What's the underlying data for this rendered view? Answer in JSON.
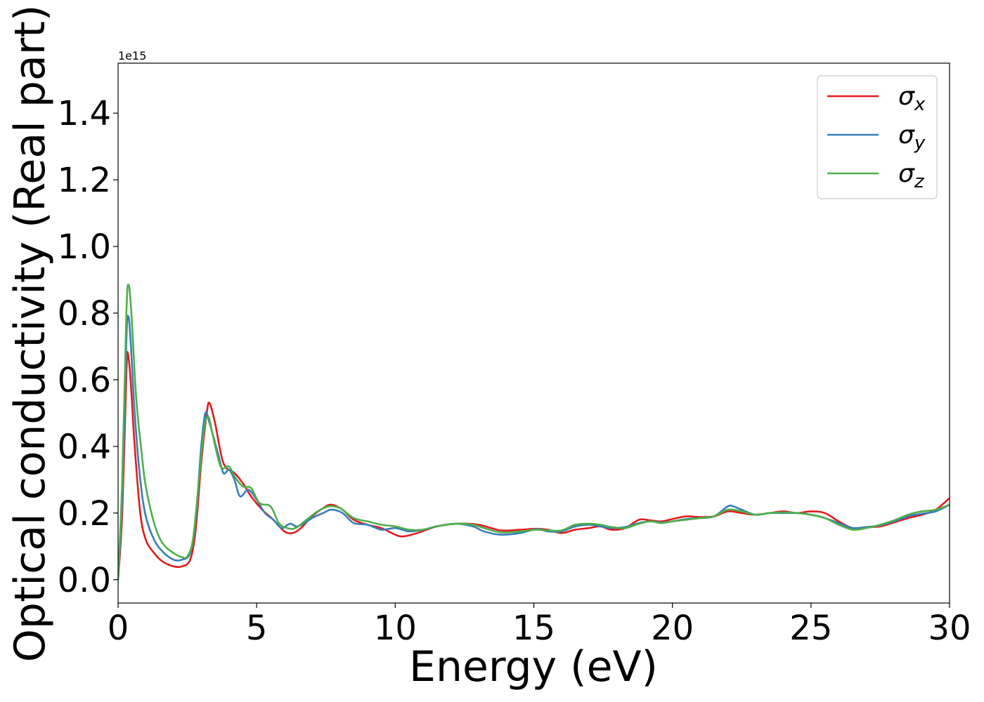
{
  "chart_data": {
    "type": "line",
    "title": "",
    "xlabel": "Energy (eV)",
    "ylabel": "Optical conductivity (Real part)",
    "y_offset_label": "1e15",
    "xlim": [
      0,
      30
    ],
    "ylim": [
      -0.07,
      1.55
    ],
    "x_ticks": [
      0,
      5,
      10,
      15,
      20,
      25,
      30
    ],
    "x_tick_labels": [
      "0",
      "5",
      "10",
      "15",
      "20",
      "25",
      "30"
    ],
    "y_ticks": [
      0.0,
      0.2,
      0.4,
      0.6,
      0.8,
      1.0,
      1.2,
      1.4
    ],
    "y_tick_labels": [
      "0.0",
      "0.2",
      "0.4",
      "0.6",
      "0.8",
      "1.0",
      "1.2",
      "1.4"
    ],
    "grid": false,
    "legend_position": "top-right",
    "series": [
      {
        "name": "σx",
        "legend_symbol": "σ",
        "legend_subscript": "x",
        "color": "#e41a1c",
        "points": [
          [
            0,
            0.0
          ],
          [
            0.15,
            0.2
          ],
          [
            0.3,
            0.62
          ],
          [
            0.35,
            0.68
          ],
          [
            0.45,
            0.6
          ],
          [
            0.6,
            0.4
          ],
          [
            0.8,
            0.2
          ],
          [
            1.0,
            0.12
          ],
          [
            1.3,
            0.08
          ],
          [
            1.6,
            0.055
          ],
          [
            2.0,
            0.04
          ],
          [
            2.3,
            0.04
          ],
          [
            2.6,
            0.06
          ],
          [
            2.8,
            0.15
          ],
          [
            3.0,
            0.35
          ],
          [
            3.2,
            0.5
          ],
          [
            3.3,
            0.53
          ],
          [
            3.5,
            0.47
          ],
          [
            3.8,
            0.35
          ],
          [
            4.2,
            0.32
          ],
          [
            4.5,
            0.29
          ],
          [
            4.8,
            0.25
          ],
          [
            5.2,
            0.21
          ],
          [
            5.6,
            0.18
          ],
          [
            6.0,
            0.145
          ],
          [
            6.3,
            0.14
          ],
          [
            6.6,
            0.155
          ],
          [
            7.0,
            0.19
          ],
          [
            7.4,
            0.215
          ],
          [
            7.7,
            0.225
          ],
          [
            8.1,
            0.21
          ],
          [
            8.5,
            0.18
          ],
          [
            9.0,
            0.165
          ],
          [
            9.5,
            0.155
          ],
          [
            10.0,
            0.135
          ],
          [
            10.3,
            0.13
          ],
          [
            10.8,
            0.14
          ],
          [
            11.5,
            0.16
          ],
          [
            12.2,
            0.168
          ],
          [
            13.0,
            0.165
          ],
          [
            13.8,
            0.148
          ],
          [
            14.5,
            0.15
          ],
          [
            15.1,
            0.153
          ],
          [
            15.5,
            0.15
          ],
          [
            16.0,
            0.14
          ],
          [
            16.5,
            0.15
          ],
          [
            17.0,
            0.155
          ],
          [
            17.4,
            0.16
          ],
          [
            17.8,
            0.15
          ],
          [
            18.3,
            0.155
          ],
          [
            18.8,
            0.18
          ],
          [
            19.2,
            0.178
          ],
          [
            19.6,
            0.175
          ],
          [
            20.0,
            0.182
          ],
          [
            20.5,
            0.19
          ],
          [
            21.0,
            0.188
          ],
          [
            21.5,
            0.19
          ],
          [
            22.0,
            0.205
          ],
          [
            22.5,
            0.2
          ],
          [
            23.0,
            0.195
          ],
          [
            23.5,
            0.2
          ],
          [
            24.0,
            0.205
          ],
          [
            24.5,
            0.2
          ],
          [
            25.0,
            0.205
          ],
          [
            25.5,
            0.2
          ],
          [
            26.0,
            0.175
          ],
          [
            26.5,
            0.155
          ],
          [
            27.0,
            0.158
          ],
          [
            27.5,
            0.16
          ],
          [
            28.0,
            0.172
          ],
          [
            28.5,
            0.185
          ],
          [
            29.0,
            0.195
          ],
          [
            29.5,
            0.21
          ],
          [
            30.0,
            0.245
          ]
        ]
      },
      {
        "name": "σy",
        "legend_symbol": "σ",
        "legend_subscript": "y",
        "color": "#377eb8",
        "points": [
          [
            0,
            0.0
          ],
          [
            0.15,
            0.25
          ],
          [
            0.3,
            0.72
          ],
          [
            0.37,
            0.79
          ],
          [
            0.45,
            0.72
          ],
          [
            0.6,
            0.5
          ],
          [
            0.8,
            0.3
          ],
          [
            1.0,
            0.19
          ],
          [
            1.3,
            0.12
          ],
          [
            1.6,
            0.085
          ],
          [
            2.0,
            0.06
          ],
          [
            2.3,
            0.06
          ],
          [
            2.6,
            0.08
          ],
          [
            2.8,
            0.18
          ],
          [
            3.0,
            0.4
          ],
          [
            3.15,
            0.5
          ],
          [
            3.3,
            0.47
          ],
          [
            3.6,
            0.38
          ],
          [
            3.8,
            0.32
          ],
          [
            4.0,
            0.33
          ],
          [
            4.2,
            0.3
          ],
          [
            4.4,
            0.25
          ],
          [
            4.7,
            0.27
          ],
          [
            5.0,
            0.24
          ],
          [
            5.3,
            0.2
          ],
          [
            5.6,
            0.18
          ],
          [
            5.9,
            0.155
          ],
          [
            6.2,
            0.168
          ],
          [
            6.5,
            0.16
          ],
          [
            7.0,
            0.185
          ],
          [
            7.4,
            0.2
          ],
          [
            7.7,
            0.21
          ],
          [
            8.1,
            0.2
          ],
          [
            8.5,
            0.17
          ],
          [
            9.0,
            0.165
          ],
          [
            9.5,
            0.15
          ],
          [
            10.0,
            0.155
          ],
          [
            10.5,
            0.145
          ],
          [
            11.0,
            0.15
          ],
          [
            11.5,
            0.16
          ],
          [
            12.2,
            0.168
          ],
          [
            12.8,
            0.16
          ],
          [
            13.2,
            0.145
          ],
          [
            13.8,
            0.135
          ],
          [
            14.5,
            0.14
          ],
          [
            15.1,
            0.152
          ],
          [
            15.5,
            0.145
          ],
          [
            16.0,
            0.145
          ],
          [
            16.5,
            0.16
          ],
          [
            17.0,
            0.165
          ],
          [
            17.4,
            0.16
          ],
          [
            17.8,
            0.155
          ],
          [
            18.3,
            0.158
          ],
          [
            18.8,
            0.17
          ],
          [
            19.2,
            0.175
          ],
          [
            19.6,
            0.172
          ],
          [
            20.0,
            0.175
          ],
          [
            20.5,
            0.182
          ],
          [
            21.0,
            0.185
          ],
          [
            21.5,
            0.19
          ],
          [
            22.0,
            0.22
          ],
          [
            22.2,
            0.22
          ],
          [
            22.5,
            0.21
          ],
          [
            23.0,
            0.195
          ],
          [
            23.5,
            0.2
          ],
          [
            24.0,
            0.2
          ],
          [
            24.5,
            0.2
          ],
          [
            25.0,
            0.195
          ],
          [
            25.5,
            0.185
          ],
          [
            26.0,
            0.17
          ],
          [
            26.5,
            0.155
          ],
          [
            27.0,
            0.158
          ],
          [
            27.5,
            0.163
          ],
          [
            28.0,
            0.175
          ],
          [
            28.5,
            0.19
          ],
          [
            29.0,
            0.198
          ],
          [
            29.5,
            0.205
          ],
          [
            30.0,
            0.225
          ]
        ]
      },
      {
        "name": "σz",
        "legend_symbol": "σ",
        "legend_subscript": "z",
        "color": "#4daf4a",
        "points": [
          [
            0,
            0.0
          ],
          [
            0.15,
            0.3
          ],
          [
            0.3,
            0.8
          ],
          [
            0.38,
            0.885
          ],
          [
            0.48,
            0.8
          ],
          [
            0.65,
            0.55
          ],
          [
            0.85,
            0.38
          ],
          [
            1.0,
            0.28
          ],
          [
            1.3,
            0.17
          ],
          [
            1.6,
            0.11
          ],
          [
            2.0,
            0.08
          ],
          [
            2.3,
            0.068
          ],
          [
            2.5,
            0.07
          ],
          [
            2.7,
            0.12
          ],
          [
            2.9,
            0.28
          ],
          [
            3.1,
            0.45
          ],
          [
            3.25,
            0.49
          ],
          [
            3.4,
            0.44
          ],
          [
            3.7,
            0.34
          ],
          [
            4.0,
            0.34
          ],
          [
            4.2,
            0.31
          ],
          [
            4.5,
            0.28
          ],
          [
            4.8,
            0.275
          ],
          [
            5.1,
            0.23
          ],
          [
            5.5,
            0.22
          ],
          [
            5.8,
            0.17
          ],
          [
            6.1,
            0.155
          ],
          [
            6.4,
            0.155
          ],
          [
            6.8,
            0.18
          ],
          [
            7.2,
            0.205
          ],
          [
            7.6,
            0.22
          ],
          [
            8.0,
            0.215
          ],
          [
            8.5,
            0.185
          ],
          [
            9.0,
            0.175
          ],
          [
            9.5,
            0.165
          ],
          [
            10.0,
            0.16
          ],
          [
            10.5,
            0.15
          ],
          [
            11.0,
            0.15
          ],
          [
            11.5,
            0.16
          ],
          [
            12.2,
            0.168
          ],
          [
            12.8,
            0.165
          ],
          [
            13.2,
            0.155
          ],
          [
            13.8,
            0.142
          ],
          [
            14.5,
            0.145
          ],
          [
            15.1,
            0.15
          ],
          [
            15.5,
            0.148
          ],
          [
            16.0,
            0.148
          ],
          [
            16.5,
            0.165
          ],
          [
            17.0,
            0.168
          ],
          [
            17.4,
            0.165
          ],
          [
            17.8,
            0.158
          ],
          [
            18.3,
            0.155
          ],
          [
            18.8,
            0.168
          ],
          [
            19.2,
            0.175
          ],
          [
            19.6,
            0.17
          ],
          [
            20.0,
            0.175
          ],
          [
            20.5,
            0.18
          ],
          [
            21.0,
            0.185
          ],
          [
            21.5,
            0.19
          ],
          [
            22.0,
            0.21
          ],
          [
            22.5,
            0.205
          ],
          [
            23.0,
            0.195
          ],
          [
            23.5,
            0.2
          ],
          [
            24.0,
            0.202
          ],
          [
            24.5,
            0.2
          ],
          [
            25.0,
            0.195
          ],
          [
            25.5,
            0.185
          ],
          [
            26.0,
            0.165
          ],
          [
            26.5,
            0.15
          ],
          [
            27.0,
            0.155
          ],
          [
            27.5,
            0.165
          ],
          [
            28.0,
            0.178
          ],
          [
            28.5,
            0.195
          ],
          [
            29.0,
            0.205
          ],
          [
            29.5,
            0.21
          ],
          [
            30.0,
            0.225
          ]
        ]
      }
    ]
  }
}
